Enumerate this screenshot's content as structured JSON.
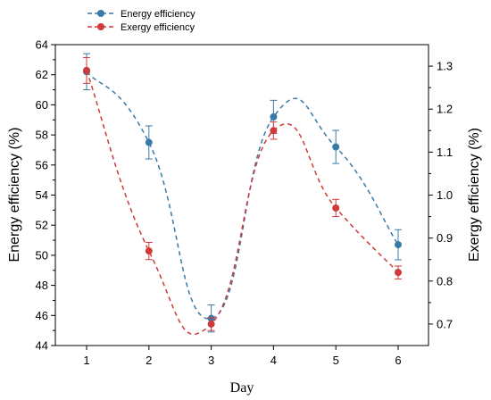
{
  "chart_data": {
    "type": "line",
    "xlabel": "Day",
    "ylabel_left": "Energy efficiency (%)",
    "ylabel_right": "Exergy efficiency (%)",
    "x": [
      1,
      2,
      3,
      4,
      5,
      6
    ],
    "x_ticks": [
      "1",
      "2",
      "3",
      "4",
      "5",
      "6"
    ],
    "ylim_left": [
      44,
      64
    ],
    "ylim_right": [
      0.65,
      1.35
    ],
    "y_ticks_left": [
      "44",
      "46",
      "48",
      "50",
      "52",
      "54",
      "56",
      "58",
      "60",
      "62",
      "64"
    ],
    "y_ticks_right": [
      "0.7",
      "0.8",
      "0.9",
      "1.0",
      "1.1",
      "1.2",
      "1.3"
    ],
    "legend_position": "top-left, above plot",
    "series": [
      {
        "name": "Energy efficiency",
        "axis": "left",
        "color": "#3a7aa6",
        "values": [
          62.2,
          57.5,
          45.8,
          59.2,
          57.2,
          50.7
        ],
        "errors": [
          1.2,
          1.1,
          0.9,
          1.1,
          1.1,
          1.0
        ]
      },
      {
        "name": "Exergy efficiency",
        "axis": "right",
        "color": "#cf3a3a",
        "values": [
          1.29,
          0.87,
          0.7,
          1.15,
          0.97,
          0.82
        ],
        "errors": [
          0.03,
          0.02,
          0.015,
          0.02,
          0.02,
          0.015
        ]
      }
    ]
  }
}
